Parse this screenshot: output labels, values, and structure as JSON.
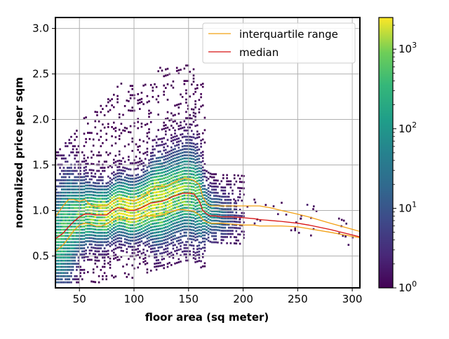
{
  "chart_data": {
    "type": "heatmap",
    "title": "",
    "xlabel": "floor area (sq meter)",
    "ylabel": "normalized price per sqm",
    "xlim": [
      28,
      307
    ],
    "ylim": [
      0.15,
      3.12
    ],
    "x_ticks": [
      50,
      100,
      150,
      200,
      250,
      300
    ],
    "y_ticks": [
      0.5,
      1.0,
      1.5,
      2.0,
      2.5,
      3.0
    ],
    "x_tick_labels": [
      "50",
      "100",
      "150",
      "200",
      "250",
      "300"
    ],
    "y_tick_labels": [
      "0.5",
      "1.0",
      "1.5",
      "2.0",
      "2.5",
      "3.0"
    ],
    "grid": true,
    "colormap": "viridis",
    "colorbar": {
      "scale": "log",
      "range": [
        1,
        2500
      ],
      "tick_labels": [
        "10^0",
        "10^1",
        "10^2",
        "10^3"
      ],
      "tick_values": [
        1,
        10,
        100,
        1000
      ]
    },
    "legend": {
      "position": "top-right",
      "entries": [
        "interquartile range",
        "median"
      ]
    },
    "series": [
      {
        "name": "median",
        "color": "#d81313",
        "x": [
          28,
          35,
          40,
          45,
          50,
          55,
          60,
          65,
          70,
          75,
          80,
          85,
          90,
          95,
          100,
          105,
          110,
          115,
          120,
          125,
          130,
          135,
          140,
          145,
          150,
          155,
          160,
          163,
          167,
          170,
          175,
          180,
          190,
          200,
          210,
          215,
          225,
          235,
          250,
          260,
          280,
          307
        ],
        "y": [
          0.69,
          0.75,
          0.82,
          0.88,
          0.93,
          0.96,
          0.96,
          0.95,
          0.95,
          0.95,
          1.0,
          1.03,
          1.02,
          1.0,
          1.0,
          1.02,
          1.05,
          1.08,
          1.09,
          1.1,
          1.12,
          1.15,
          1.17,
          1.19,
          1.19,
          1.18,
          1.1,
          1.0,
          0.96,
          0.94,
          0.94,
          0.93,
          0.93,
          0.92,
          0.91,
          0.9,
          0.89,
          0.88,
          0.86,
          0.84,
          0.79,
          0.71
        ]
      },
      {
        "name": "interquartile range",
        "color": "#f2a012",
        "x": [
          28,
          35,
          40,
          45,
          50,
          55,
          60,
          65,
          70,
          75,
          80,
          85,
          90,
          95,
          100,
          105,
          110,
          115,
          120,
          125,
          130,
          135,
          140,
          145,
          150,
          155,
          160,
          163,
          167,
          170,
          175,
          180,
          190,
          200,
          210,
          215,
          225,
          235,
          250,
          260,
          280,
          307
        ],
        "y": [
          0.93,
          1.05,
          1.12,
          1.12,
          1.1,
          1.12,
          1.06,
          1.04,
          1.05,
          1.05,
          1.1,
          1.13,
          1.12,
          1.12,
          1.1,
          1.13,
          1.17,
          1.21,
          1.26,
          1.26,
          1.27,
          1.3,
          1.33,
          1.35,
          1.35,
          1.33,
          1.28,
          1.15,
          1.07,
          1.05,
          1.05,
          1.05,
          1.05,
          1.05,
          1.05,
          1.05,
          1.03,
          1.0,
          0.96,
          0.93,
          0.86,
          0.77
        ]
      },
      {
        "name": "interquartile range",
        "color": "#f2a012",
        "x": [
          28,
          35,
          40,
          45,
          50,
          55,
          60,
          65,
          70,
          75,
          80,
          85,
          90,
          95,
          100,
          105,
          110,
          115,
          120,
          125,
          130,
          135,
          140,
          145,
          150,
          155,
          160,
          163,
          167,
          170,
          175,
          180,
          190,
          200,
          210,
          215,
          225,
          235,
          250,
          260,
          280,
          307
        ],
        "y": [
          0.55,
          0.62,
          0.7,
          0.78,
          0.84,
          0.86,
          0.85,
          0.83,
          0.83,
          0.85,
          0.89,
          0.92,
          0.91,
          0.9,
          0.9,
          0.92,
          0.94,
          0.94,
          0.94,
          0.95,
          0.97,
          0.99,
          1.01,
          1.01,
          1.0,
          0.99,
          0.95,
          0.9,
          0.87,
          0.86,
          0.86,
          0.86,
          0.85,
          0.84,
          0.84,
          0.83,
          0.83,
          0.83,
          0.82,
          0.8,
          0.76,
          0.7
        ]
      }
    ]
  }
}
